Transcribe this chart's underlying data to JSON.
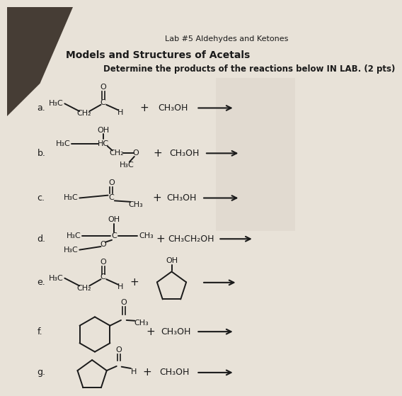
{
  "lab_label": "Lab #5 Aldehydes and Ketones",
  "title": "Models and Structures of Acetals",
  "subtitle": "Determine the products of the reactions below IN LAB. (2 pts)",
  "bg_color": "#e8e2d8",
  "paper_color": "#f2ede5",
  "text_color": "#1a1a1a",
  "dark_corner_color": "#3a3028"
}
